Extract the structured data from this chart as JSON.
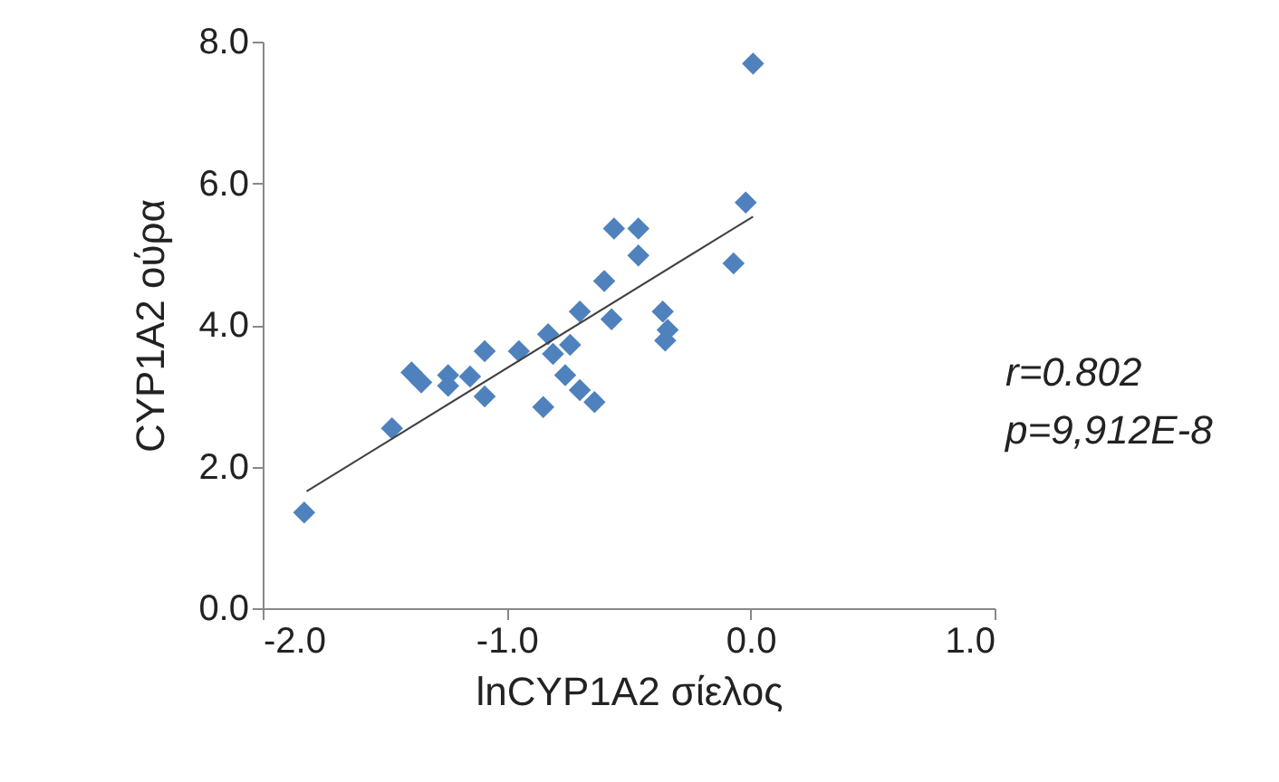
{
  "chart_data": {
    "type": "scatter",
    "xlabel": "lnCYP1A2 σίελος",
    "ylabel": "CYP1A2 ούρα",
    "xlim": [
      -2,
      1
    ],
    "ylim": [
      0,
      8
    ],
    "xticks": [
      {
        "value": -2,
        "label": "-2.0"
      },
      {
        "value": -1,
        "label": "-1.0"
      },
      {
        "value": 0,
        "label": "0.0"
      },
      {
        "value": 1,
        "label": "1.0"
      }
    ],
    "yticks": [
      {
        "value": 0,
        "label": "0.0"
      },
      {
        "value": 2,
        "label": "2.0"
      },
      {
        "value": 4,
        "label": "4.0"
      },
      {
        "value": 6,
        "label": "6.0"
      },
      {
        "value": 8,
        "label": "8.0"
      }
    ],
    "grid": false,
    "series": [
      {
        "marker": "diamond",
        "color": "#4f81bd",
        "x": [
          -1.83,
          -1.47,
          -1.39,
          -1.35,
          -1.24,
          -1.24,
          -1.15,
          -1.09,
          -1.09,
          -0.95,
          -0.85,
          -0.83,
          -0.81,
          -0.74,
          -0.76,
          -0.7,
          -0.64,
          -0.7,
          -0.6,
          -0.57,
          -0.56,
          -0.46,
          -0.46,
          -0.36,
          -0.34,
          -0.35,
          -0.07,
          -0.02,
          0.01
        ],
        "values": [
          1.35,
          2.54,
          3.33,
          3.19,
          3.29,
          3.14,
          3.27,
          3.63,
          2.99,
          3.63,
          2.84,
          3.87,
          3.59,
          3.72,
          3.29,
          3.08,
          2.91,
          4.19,
          4.62,
          4.08,
          5.36,
          5.36,
          4.98,
          4.19,
          3.93,
          3.78,
          4.87,
          5.73,
          7.69
        ]
      },
      {
        "type": "line",
        "color": "#404040",
        "x": [
          -1.82,
          0.01
        ],
        "values": [
          1.65,
          5.53
        ]
      }
    ],
    "annotations": [
      "r=0.802",
      "p=9,912E-8"
    ]
  }
}
